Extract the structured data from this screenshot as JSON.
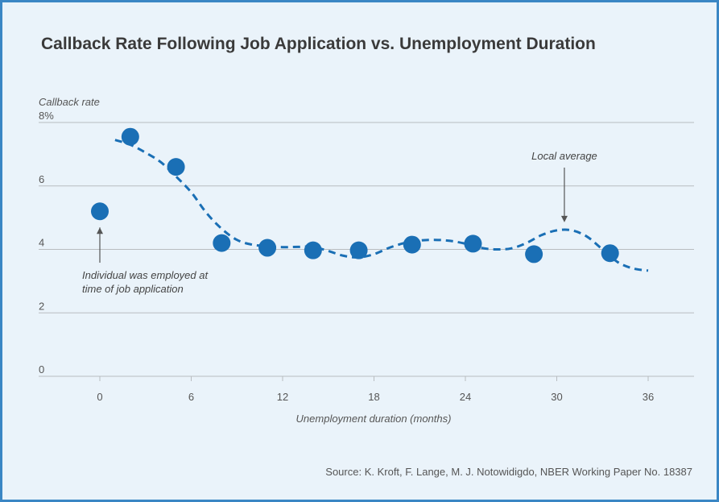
{
  "source_text": "Source: K. Kroft, F. Lange, M. J. Notowidigdo, NBER Working Paper No. 18387",
  "colors": {
    "point": "#1a6fb5",
    "line": "#1a6fb5",
    "grid": "#b8bcc0",
    "border": "#3a86c4",
    "background": "#eaf3fa"
  },
  "chart_data": {
    "type": "scatter",
    "title": "Callback Rate Following Job Application vs. Unemployment Duration",
    "xlabel": "Unemployment duration (months)",
    "ylabel": "Callback rate",
    "xlim": [
      -6,
      42
    ],
    "ylim": [
      0,
      8
    ],
    "xticks": [
      0,
      6,
      12,
      18,
      24,
      30,
      36
    ],
    "yticks": [
      0,
      2,
      4,
      6,
      8
    ],
    "ytick_labels": [
      "0",
      "2",
      "4",
      "6",
      "8%"
    ],
    "grid": "horizontal",
    "series": [
      {
        "style": "points",
        "x": [
          0,
          2,
          5,
          8,
          11,
          14,
          17,
          20.5,
          24.5,
          28.5,
          33.5
        ],
        "y": [
          5.2,
          7.55,
          6.6,
          4.2,
          4.05,
          3.97,
          3.97,
          4.15,
          4.18,
          3.85,
          3.88
        ]
      },
      {
        "name": "Local average",
        "style": "dashed-line",
        "x": [
          1,
          2,
          3,
          4,
          5,
          6,
          7,
          8,
          9,
          10,
          11,
          12,
          13,
          14,
          15,
          16,
          17,
          18,
          19,
          20,
          21,
          22,
          23,
          24,
          25,
          26,
          27,
          28,
          29,
          30,
          31,
          32,
          33,
          34,
          35,
          36
        ],
        "y": [
          7.45,
          7.3,
          7.05,
          6.75,
          6.3,
          5.8,
          5.15,
          4.65,
          4.3,
          4.15,
          4.1,
          4.07,
          4.08,
          4.08,
          3.95,
          3.8,
          3.75,
          3.85,
          4.05,
          4.2,
          4.28,
          4.3,
          4.27,
          4.18,
          4.05,
          4.0,
          4.03,
          4.2,
          4.45,
          4.6,
          4.6,
          4.4,
          4.0,
          3.6,
          3.4,
          3.33
        ]
      }
    ],
    "annotations": [
      {
        "text": "Local average",
        "x": 30.5,
        "y": 4.6,
        "label_position": "above"
      },
      {
        "lines": [
          "Individual was employed at",
          "time of job application"
        ],
        "x": 0,
        "y": 5.2,
        "label_position": "below"
      }
    ]
  }
}
